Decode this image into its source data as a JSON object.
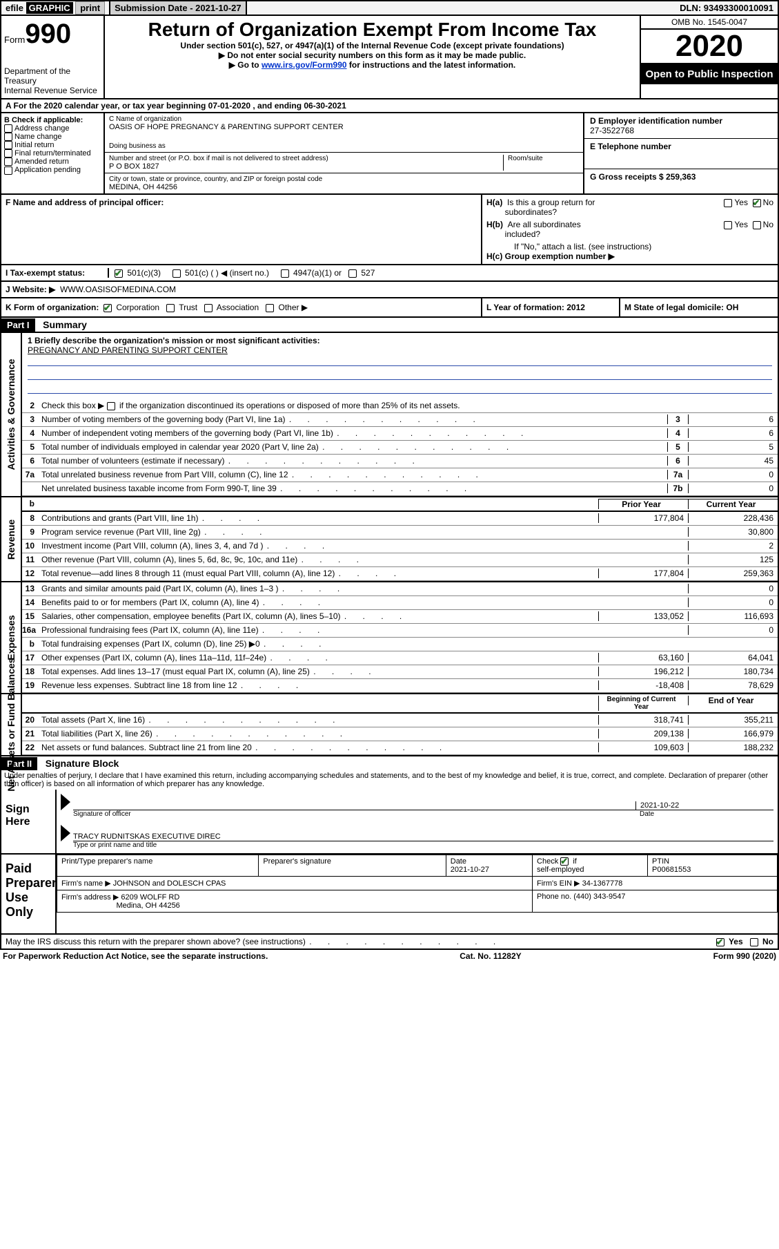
{
  "top_bar": {
    "efile_1": "efile",
    "efile_2": "GRAPHIC",
    "efile_3": "print",
    "submission_label": "Submission Date - 2021-10-27",
    "dln": "DLN: 93493300010091"
  },
  "header": {
    "form_label": "Form",
    "form_number": "990",
    "dept": "Department of the Treasury",
    "irs": "Internal Revenue Service",
    "title": "Return of Organization Exempt From Income Tax",
    "subtitle": "Under section 501(c), 527, or 4947(a)(1) of the Internal Revenue Code (except private foundations)",
    "note1": "Do not enter social security numbers on this form as it may be made public.",
    "note2_pre": "Go to ",
    "note2_link": "www.irs.gov/Form990",
    "note2_post": " for instructions and the latest information.",
    "omb": "OMB No. 1545-0047",
    "year": "2020",
    "open_public": "Open to Public Inspection"
  },
  "row_a": "A  For the 2020 calendar year, or tax year beginning 07-01-2020     , and ending 06-30-2021",
  "section_b": {
    "title": "B Check if applicable:",
    "items": [
      "Address change",
      "Name change",
      "Initial return",
      "Final return/terminated",
      "Amended return",
      "Application pending"
    ]
  },
  "section_c": {
    "name_label": "C Name of organization",
    "name": "OASIS OF HOPE PREGNANCY & PARENTING SUPPORT CENTER",
    "dba_label": "Doing business as",
    "street_label": "Number and street (or P.O. box if mail is not delivered to street address)",
    "room_label": "Room/suite",
    "street": "P O BOX 1827",
    "city_label": "City or town, state or province, country, and ZIP or foreign postal code",
    "city": "MEDINA, OH  44256"
  },
  "section_de": {
    "d_label": "D Employer identification number",
    "d_val": "27-3522768",
    "e_label": "E Telephone number",
    "g_label": "G Gross receipts $ 259,363"
  },
  "section_f": {
    "label": "F Name and address of principal officer:"
  },
  "section_h": {
    "ha_label": "H(a)  Is this a group return for subordinates?",
    "hb_label": "H(b)  Are all subordinates included?",
    "hb_note": "If \"No,\" attach a list. (see instructions)",
    "hc_label": "H(c)  Group exemption number ▶",
    "yes": "Yes",
    "no": "No"
  },
  "section_i": {
    "label": "I   Tax-exempt status:",
    "c3": "501(c)(3)",
    "c": "501(c) (    ) ◀ (insert no.)",
    "a1": "4947(a)(1) or",
    "s527": "527"
  },
  "section_j": {
    "label": "J   Website: ▶",
    "val": "WWW.OASISOFMEDINA.COM"
  },
  "section_k": {
    "k_label": "K Form of organization:",
    "corp": "Corporation",
    "trust": "Trust",
    "assoc": "Association",
    "other": "Other ▶",
    "l_label": "L Year of formation: 2012",
    "m_label": "M State of legal domicile: OH"
  },
  "part1": {
    "header": "Part I",
    "title": "Summary"
  },
  "governance": {
    "side": "Activities & Governance",
    "line1_label": "1  Briefly describe the organization's mission or most significant activities:",
    "line1_val": "PREGNANCY AND PARENTING SUPPORT CENTER",
    "line2": "Check this box ▶        if the organization discontinued its operations or disposed of more than 25% of its net assets.",
    "lines": [
      {
        "n": "3",
        "desc": "Number of voting members of the governing body (Part VI, line 1a)",
        "lab": "3",
        "val": "6"
      },
      {
        "n": "4",
        "desc": "Number of independent voting members of the governing body (Part VI, line 1b)",
        "lab": "4",
        "val": "6"
      },
      {
        "n": "5",
        "desc": "Total number of individuals employed in calendar year 2020 (Part V, line 2a)",
        "lab": "5",
        "val": "5"
      },
      {
        "n": "6",
        "desc": "Total number of volunteers (estimate if necessary)",
        "lab": "6",
        "val": "45"
      },
      {
        "n": "7a",
        "desc": "Total unrelated business revenue from Part VIII, column (C), line 12",
        "lab": "7a",
        "val": "0"
      },
      {
        "n": "",
        "desc": "Net unrelated business taxable income from Form 990-T, line 39",
        "lab": "7b",
        "val": "0"
      }
    ]
  },
  "revenue": {
    "side": "Revenue",
    "prior_label": "Prior Year",
    "current_label": "Current Year",
    "rows": [
      {
        "n": "8",
        "desc": "Contributions and grants (Part VIII, line 1h)",
        "prior": "177,804",
        "cur": "228,436"
      },
      {
        "n": "9",
        "desc": "Program service revenue (Part VIII, line 2g)",
        "prior": "",
        "cur": "30,800"
      },
      {
        "n": "10",
        "desc": "Investment income (Part VIII, column (A), lines 3, 4, and 7d )",
        "prior": "",
        "cur": "2"
      },
      {
        "n": "11",
        "desc": "Other revenue (Part VIII, column (A), lines 5, 6d, 8c, 9c, 10c, and 11e)",
        "prior": "",
        "cur": "125"
      },
      {
        "n": "12",
        "desc": "Total revenue—add lines 8 through 11 (must equal Part VIII, column (A), line 12)",
        "prior": "177,804",
        "cur": "259,363"
      }
    ]
  },
  "expenses": {
    "side": "Expenses",
    "rows": [
      {
        "n": "13",
        "desc": "Grants and similar amounts paid (Part IX, column (A), lines 1–3 )",
        "prior": "",
        "cur": "0"
      },
      {
        "n": "14",
        "desc": "Benefits paid to or for members (Part IX, column (A), line 4)",
        "prior": "",
        "cur": "0"
      },
      {
        "n": "15",
        "desc": "Salaries, other compensation, employee benefits (Part IX, column (A), lines 5–10)",
        "prior": "133,052",
        "cur": "116,693"
      },
      {
        "n": "16a",
        "desc": "Professional fundraising fees (Part IX, column (A), line 11e)",
        "prior": "",
        "cur": "0"
      },
      {
        "n": "b",
        "desc": "Total fundraising expenses (Part IX, column (D), line 25) ▶0",
        "prior": "SHADE",
        "cur": "SHADE"
      },
      {
        "n": "17",
        "desc": "Other expenses (Part IX, column (A), lines 11a–11d, 11f–24e)",
        "prior": "63,160",
        "cur": "64,041"
      },
      {
        "n": "18",
        "desc": "Total expenses. Add lines 13–17 (must equal Part IX, column (A), line 25)",
        "prior": "196,212",
        "cur": "180,734"
      },
      {
        "n": "19",
        "desc": "Revenue less expenses. Subtract line 18 from line 12",
        "prior": "-18,408",
        "cur": "78,629"
      }
    ]
  },
  "netassets": {
    "side": "Net Assets or Fund Balances",
    "begin_label": "Beginning of Current Year",
    "end_label": "End of Year",
    "rows": [
      {
        "n": "20",
        "desc": "Total assets (Part X, line 16)",
        "prior": "318,741",
        "cur": "355,211"
      },
      {
        "n": "21",
        "desc": "Total liabilities (Part X, line 26)",
        "prior": "209,138",
        "cur": "166,979"
      },
      {
        "n": "22",
        "desc": "Net assets or fund balances. Subtract line 21 from line 20",
        "prior": "109,603",
        "cur": "188,232"
      }
    ]
  },
  "part2": {
    "header": "Part II",
    "title": "Signature Block",
    "penalty": "Under penalties of perjury, I declare that I have examined this return, including accompanying schedules and statements, and to the best of my knowledge and belief, it is true, correct, and complete. Declaration of preparer (other than officer) is based on all information of which preparer has any knowledge."
  },
  "sign_here": {
    "label": "Sign Here",
    "sig_label": "Signature of officer",
    "date_label": "Date",
    "date_val": "2021-10-22",
    "name_val": "TRACY RUDNITSKAS  EXECUTIVE DIREC",
    "name_label": "Type or print name and title"
  },
  "preparer": {
    "label": "Paid Preparer Use Only",
    "print_name_label": "Print/Type preparer's name",
    "sig_label": "Preparer's signature",
    "date_label": "Date",
    "date_val": "2021-10-27",
    "check_label": "Check          if self-employed",
    "ptin_label": "PTIN",
    "ptin_val": "P00681553",
    "firm_name_label": "Firm's name     ▶",
    "firm_name": "JOHNSON and DOLESCH CPAS",
    "firm_ein_label": "Firm's EIN ▶",
    "firm_ein": "34-1367778",
    "firm_addr_label": "Firm's address ▶",
    "firm_addr1": "6209 WOLFF RD",
    "firm_addr2": "Medina, OH  44256",
    "phone_label": "Phone no.",
    "phone": "(440) 343-9547"
  },
  "footer": {
    "discuss": "May the IRS discuss this return with the preparer shown above? (see instructions)",
    "yes": "Yes",
    "no": "No",
    "paperwork": "For Paperwork Reduction Act Notice, see the separate instructions.",
    "cat": "Cat. No. 11282Y",
    "form": "Form 990 (2020)"
  }
}
